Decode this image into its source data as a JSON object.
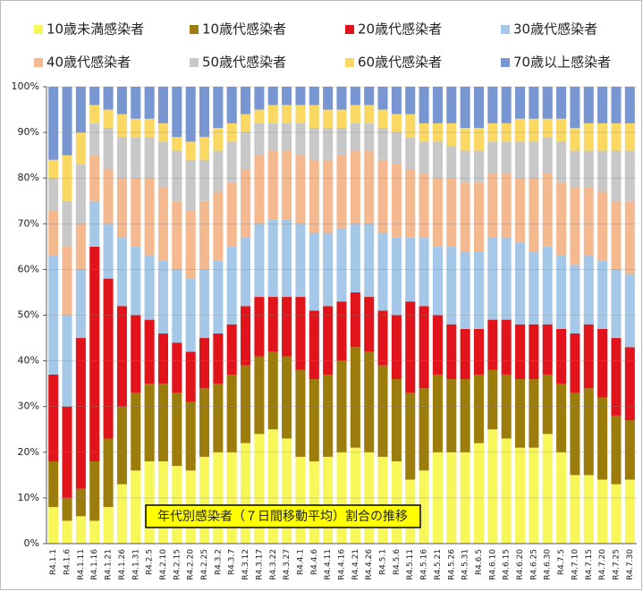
{
  "chart_data": {
    "type": "stacked_bar_percent",
    "annotation": "年代別感染者（７日間移動平均）割合の推移",
    "categories": [
      "R4.1.1",
      "R4.1.6",
      "R4.1.11",
      "R4.1.16",
      "R4.1.21",
      "R4.1.26",
      "R4.1.31",
      "R4.2.5",
      "R4.2.10",
      "R4.2.15",
      "R4.2.20",
      "R4.2.25",
      "R4.3.2",
      "R4.3.7",
      "R4.3.12",
      "R4.3.17",
      "R4.3.22",
      "R4.3.27",
      "R4.4.1",
      "R4.4.6",
      "R4.4.11",
      "R4.4.16",
      "R4.4.21",
      "R4.4.26",
      "R4.5.1",
      "R4.5.6",
      "R4.5.11",
      "R4.5.16",
      "R4.5.21",
      "R4.5.26",
      "R4.5.31",
      "R4.6.5",
      "R4.6.10",
      "R4.6.15",
      "R4.6.20",
      "R4.6.25",
      "R4.6.30",
      "R4.7.5",
      "R4.7.10",
      "R4.7.15",
      "R4.7.20",
      "R4.7.25",
      "R4.7.30"
    ],
    "series": [
      {
        "name": "10歳未満感染者",
        "color": "#f7f75a",
        "values": [
          8,
          5,
          6,
          5,
          8,
          13,
          16,
          18,
          18,
          17,
          16,
          19,
          20,
          20,
          22,
          24,
          25,
          23,
          19,
          18,
          19,
          20,
          21,
          20,
          19,
          18,
          14,
          16,
          20,
          20,
          20,
          22,
          25,
          23,
          21,
          21,
          24,
          20,
          15,
          15,
          14,
          13,
          14
        ]
      },
      {
        "name": "10歳代感染者",
        "color": "#9c7c0a",
        "values": [
          10,
          5,
          6,
          13,
          15,
          17,
          17,
          17,
          17,
          16,
          15,
          15,
          15,
          17,
          17,
          17,
          17,
          18,
          19,
          18,
          18,
          20,
          22,
          22,
          20,
          18,
          19,
          18,
          17,
          16,
          16,
          15,
          13,
          14,
          15,
          15,
          13,
          15,
          18,
          19,
          18,
          15,
          13
        ]
      },
      {
        "name": "20歳代感染者",
        "color": "#e0141a",
        "values": [
          19,
          20,
          33,
          47,
          35,
          22,
          17,
          14,
          11,
          11,
          11,
          11,
          11,
          11,
          13,
          13,
          12,
          13,
          16,
          15,
          15,
          13,
          12,
          12,
          12,
          14,
          20,
          18,
          13,
          12,
          11,
          10,
          11,
          12,
          12,
          12,
          11,
          12,
          13,
          14,
          15,
          17,
          16
        ]
      },
      {
        "name": "30歳代感染者",
        "color": "#a6c8e8",
        "values": [
          26,
          20,
          15,
          10,
          12,
          15,
          15,
          14,
          16,
          16,
          16,
          15,
          16,
          17,
          15,
          16,
          17,
          17,
          16,
          17,
          16,
          16,
          15,
          16,
          17,
          17,
          14,
          15,
          15,
          17,
          17,
          17,
          18,
          18,
          18,
          16,
          17,
          16,
          15,
          15,
          15,
          15,
          16
        ]
      },
      {
        "name": "40歳代感染者",
        "color": "#f5b98f",
        "values": [
          10,
          15,
          10,
          10,
          12,
          13,
          15,
          17,
          16,
          15,
          15,
          15,
          15,
          14,
          15,
          15,
          15,
          15,
          15,
          16,
          16,
          16,
          16,
          16,
          16,
          16,
          15,
          14,
          15,
          15,
          15,
          15,
          14,
          14,
          14,
          16,
          16,
          16,
          17,
          15,
          15,
          15,
          16
        ]
      },
      {
        "name": "50歳代感染者",
        "color": "#c8c8c8",
        "values": [
          7,
          10,
          13,
          7,
          9,
          9,
          9,
          9,
          10,
          11,
          11,
          9,
          9,
          9,
          8,
          7,
          6,
          6,
          7,
          7,
          7,
          6,
          6,
          6,
          7,
          7,
          7,
          7,
          8,
          7,
          7,
          7,
          7,
          7,
          8,
          8,
          8,
          9,
          8,
          8,
          9,
          11,
          11
        ]
      },
      {
        "name": "60歳代感染者",
        "color": "#fad862",
        "values": [
          4,
          10,
          7,
          4,
          4,
          5,
          4,
          4,
          4,
          3,
          4,
          5,
          5,
          4,
          4,
          3,
          4,
          4,
          4,
          5,
          4,
          4,
          4,
          4,
          4,
          4,
          5,
          4,
          4,
          5,
          5,
          5,
          4,
          4,
          5,
          5,
          4,
          5,
          5,
          6,
          6,
          6,
          6
        ]
      },
      {
        "name": "70歳以上感染者",
        "color": "#7896d2",
        "values": [
          16,
          15,
          10,
          4,
          5,
          6,
          7,
          7,
          8,
          11,
          12,
          11,
          9,
          8,
          6,
          5,
          4,
          4,
          4,
          4,
          5,
          5,
          4,
          4,
          5,
          6,
          6,
          8,
          8,
          8,
          9,
          9,
          8,
          8,
          7,
          7,
          7,
          7,
          9,
          8,
          8,
          8,
          8
        ]
      }
    ],
    "ylim": [
      0,
      100
    ],
    "yticks": [
      {
        "value": 0,
        "label": "0%"
      },
      {
        "value": 10,
        "label": "10%"
      },
      {
        "value": 20,
        "label": "20%"
      },
      {
        "value": 30,
        "label": "30%"
      },
      {
        "value": 40,
        "label": "40%"
      },
      {
        "value": 50,
        "label": "50%"
      },
      {
        "value": 60,
        "label": "60%"
      },
      {
        "value": 70,
        "label": "70%"
      },
      {
        "value": 80,
        "label": "80%"
      },
      {
        "value": 90,
        "label": "90%"
      },
      {
        "value": 100,
        "label": "100%"
      }
    ],
    "grid": true
  }
}
